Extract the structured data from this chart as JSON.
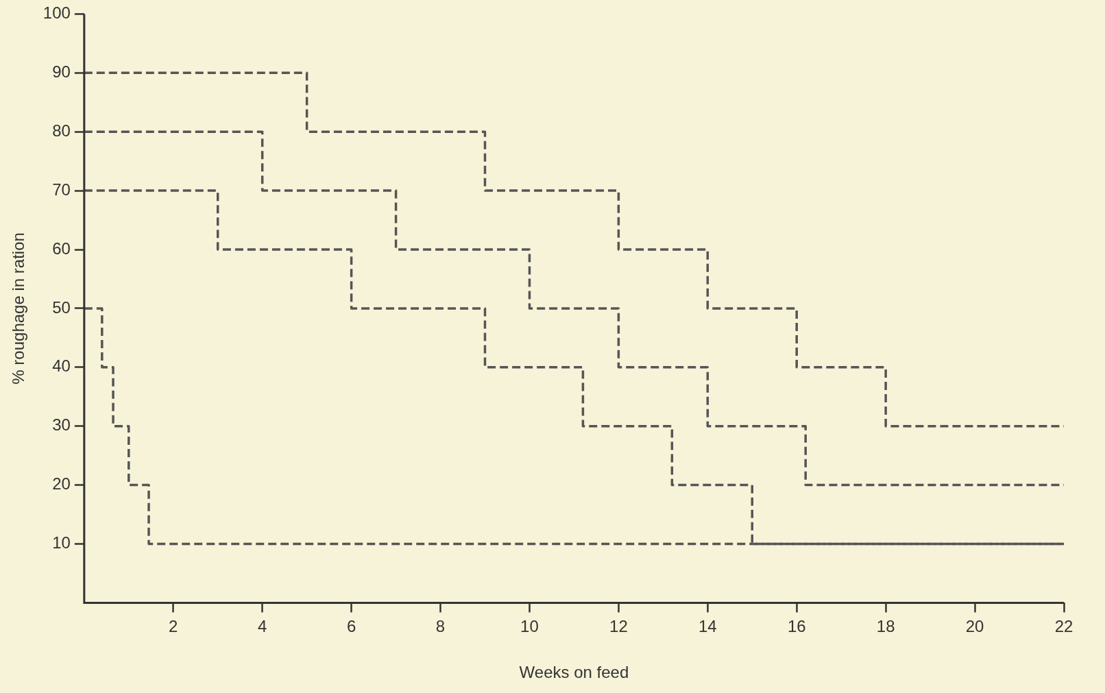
{
  "chart_data": {
    "type": "step",
    "xlabel": "Weeks on feed",
    "ylabel": "% roughage in ration",
    "xlim": [
      0,
      22
    ],
    "ylim": [
      0,
      100
    ],
    "xticks": [
      2,
      4,
      6,
      8,
      10,
      12,
      14,
      16,
      18,
      20,
      22
    ],
    "yticks": [
      10,
      20,
      30,
      40,
      50,
      60,
      70,
      80,
      90,
      100
    ],
    "grid": false,
    "legend": false,
    "marker": "none",
    "line_style": "dashed",
    "series": [
      {
        "color": "#555555",
        "x": [
          0,
          5,
          9,
          12,
          14,
          16,
          18,
          22
        ],
        "values": [
          90,
          80,
          70,
          60,
          50,
          40,
          30,
          30
        ]
      },
      {
        "color": "#555555",
        "x": [
          0,
          4,
          7,
          10,
          12,
          14,
          16.2,
          22
        ],
        "values": [
          80,
          70,
          60,
          50,
          40,
          30,
          20,
          20
        ]
      },
      {
        "color": "#555555",
        "x": [
          0,
          3,
          6,
          9,
          11.2,
          13.2,
          15,
          22
        ],
        "values": [
          70,
          60,
          50,
          40,
          30,
          20,
          10,
          10
        ]
      },
      {
        "color": "#555555",
        "x": [
          0,
          0.4,
          0.65,
          1,
          1.45,
          22
        ],
        "values": [
          50,
          40,
          30,
          20,
          10,
          10
        ]
      }
    ]
  }
}
